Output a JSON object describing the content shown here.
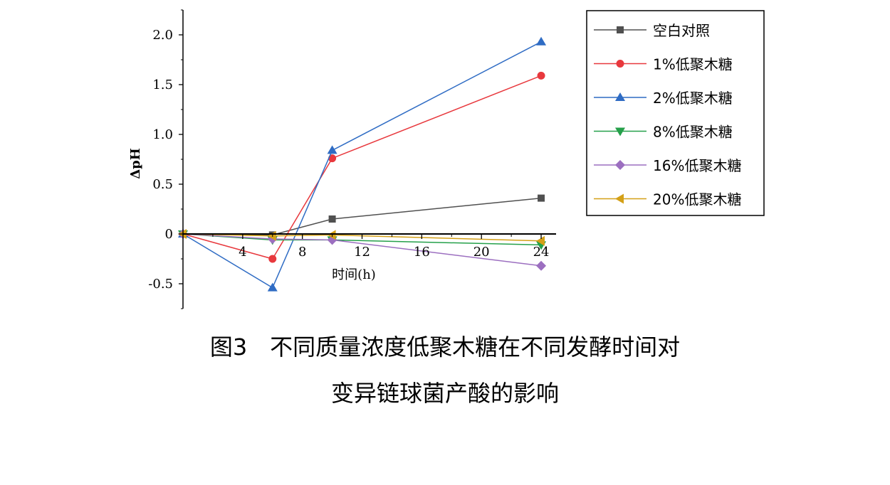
{
  "caption": {
    "line1": "图3　不同质量浓度低聚木糖在不同发酵时间对",
    "line2": "变异链球菌产酸的影响"
  },
  "chart_data": {
    "type": "line",
    "xlabel": "时间(h)",
    "ylabel": "ΔpH",
    "x": [
      0,
      6,
      10,
      24
    ],
    "xlim": [
      0,
      25
    ],
    "ylim": [
      -0.75,
      2.25
    ],
    "xticks": [
      "4",
      "8",
      "12",
      "16",
      "20",
      "24"
    ],
    "yticks": [
      "2.0",
      "1.5",
      "1.0",
      "0.5",
      "0",
      "-0.5"
    ],
    "legend_position": "top-right",
    "grid": false,
    "series": [
      {
        "name": "空白对照",
        "marker": "square",
        "color": "#505050",
        "values": [
          0,
          -0.01,
          0.15,
          0.36
        ]
      },
      {
        "name": "1%低聚木糖",
        "marker": "circle",
        "color": "#e8383d",
        "values": [
          0,
          -0.25,
          0.76,
          1.59
        ]
      },
      {
        "name": "2%低聚木糖",
        "marker": "triangle-up",
        "color": "#2f6cc4",
        "values": [
          0,
          -0.54,
          0.84,
          1.93
        ]
      },
      {
        "name": "8%低聚木糖",
        "marker": "triangle-down",
        "color": "#25a04a",
        "values": [
          0,
          -0.06,
          -0.06,
          -0.11
        ]
      },
      {
        "name": "16%低聚木糖",
        "marker": "diamond",
        "color": "#9c6fc0",
        "values": [
          0,
          -0.05,
          -0.06,
          -0.32
        ]
      },
      {
        "name": "20%低聚木糖",
        "marker": "triangle-left",
        "color": "#d4a017",
        "values": [
          0,
          -0.02,
          -0.01,
          -0.07
        ]
      }
    ]
  }
}
